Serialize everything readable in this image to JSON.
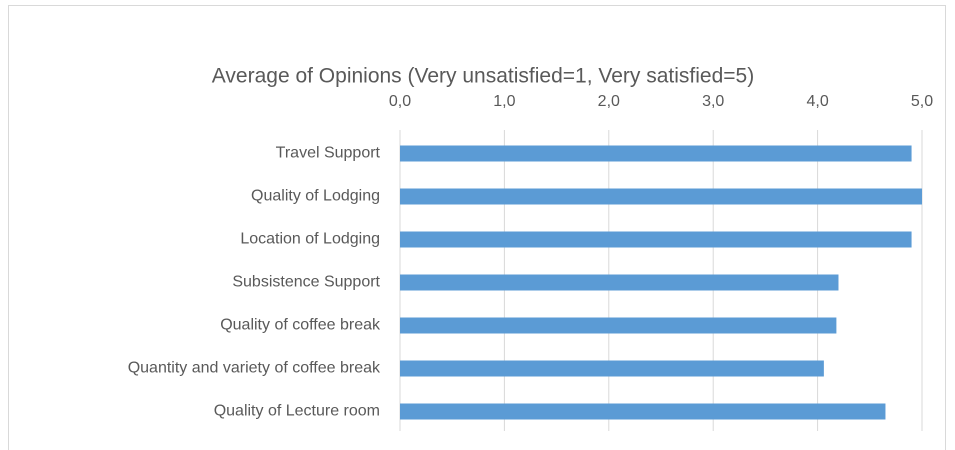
{
  "chart_data": {
    "type": "bar",
    "orientation": "horizontal",
    "title": "Average  of Opinions (Very unsatisfied=1, Very satisfied=5)",
    "categories": [
      "Travel Support",
      "Quality of Lodging",
      "Location of Lodging",
      "Subsistence Support",
      "Quality of coffee break",
      "Quantity and variety of coffee break",
      "Quality of Lecture room"
    ],
    "values": [
      4.9,
      5.0,
      4.9,
      4.2,
      4.18,
      4.06,
      4.65
    ],
    "color": "#5b9bd5",
    "xlim": [
      0,
      5
    ],
    "xticks": [
      {
        "value": 0,
        "label": "0,0"
      },
      {
        "value": 1,
        "label": "1,0"
      },
      {
        "value": 2,
        "label": "2,0"
      },
      {
        "value": 3,
        "label": "3,0"
      },
      {
        "value": 4,
        "label": "4,0"
      },
      {
        "value": 5,
        "label": "5,0"
      }
    ],
    "grid": true
  }
}
